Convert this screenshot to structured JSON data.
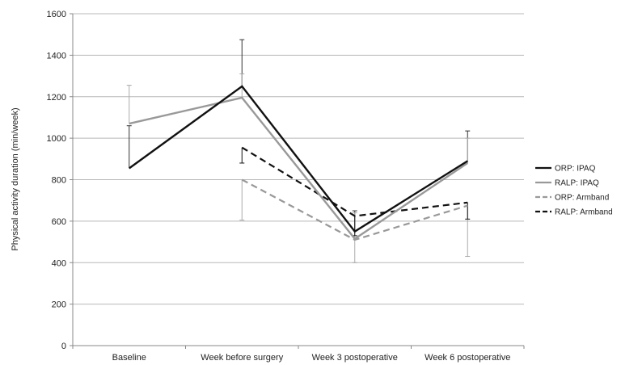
{
  "chart_data": {
    "type": "line",
    "title": "",
    "xlabel": "",
    "ylabel": "Physical activity duration (min/week)",
    "categories": [
      "Baseline",
      "Week before surgery",
      "Week 3 postoperative",
      "Week 6 postoperative"
    ],
    "ylim": [
      0,
      1600
    ],
    "yticks": [
      0,
      200,
      400,
      600,
      800,
      1000,
      1200,
      1400,
      1600
    ],
    "grid": true,
    "legend_position": "right",
    "series": [
      {
        "name": "ORP: IPAQ",
        "color": "#111111",
        "dash": "solid",
        "values": [
          855,
          1250,
          550,
          890
        ],
        "error_upper": [
          1060,
          1475,
          650,
          1035
        ],
        "error_lower": [
          null,
          null,
          null,
          null
        ]
      },
      {
        "name": "RALP: IPAQ",
        "color": "#999999",
        "dash": "solid",
        "values": [
          1070,
          1195,
          515,
          880
        ],
        "error_upper": [
          1255,
          1310,
          640,
          1000
        ],
        "error_lower": [
          null,
          null,
          null,
          null
        ]
      },
      {
        "name": "ORP: Armband",
        "color": "#999999",
        "dash": "dashed",
        "values": [
          null,
          800,
          510,
          675
        ],
        "error_upper": [
          null,
          null,
          null,
          null
        ],
        "error_lower": [
          null,
          605,
          400,
          430
        ]
      },
      {
        "name": "RALP: Armband",
        "color": "#111111",
        "dash": "dashed",
        "values": [
          null,
          955,
          625,
          690
        ],
        "error_upper": [
          null,
          null,
          null,
          null
        ],
        "error_lower": [
          null,
          880,
          530,
          610
        ]
      }
    ]
  }
}
